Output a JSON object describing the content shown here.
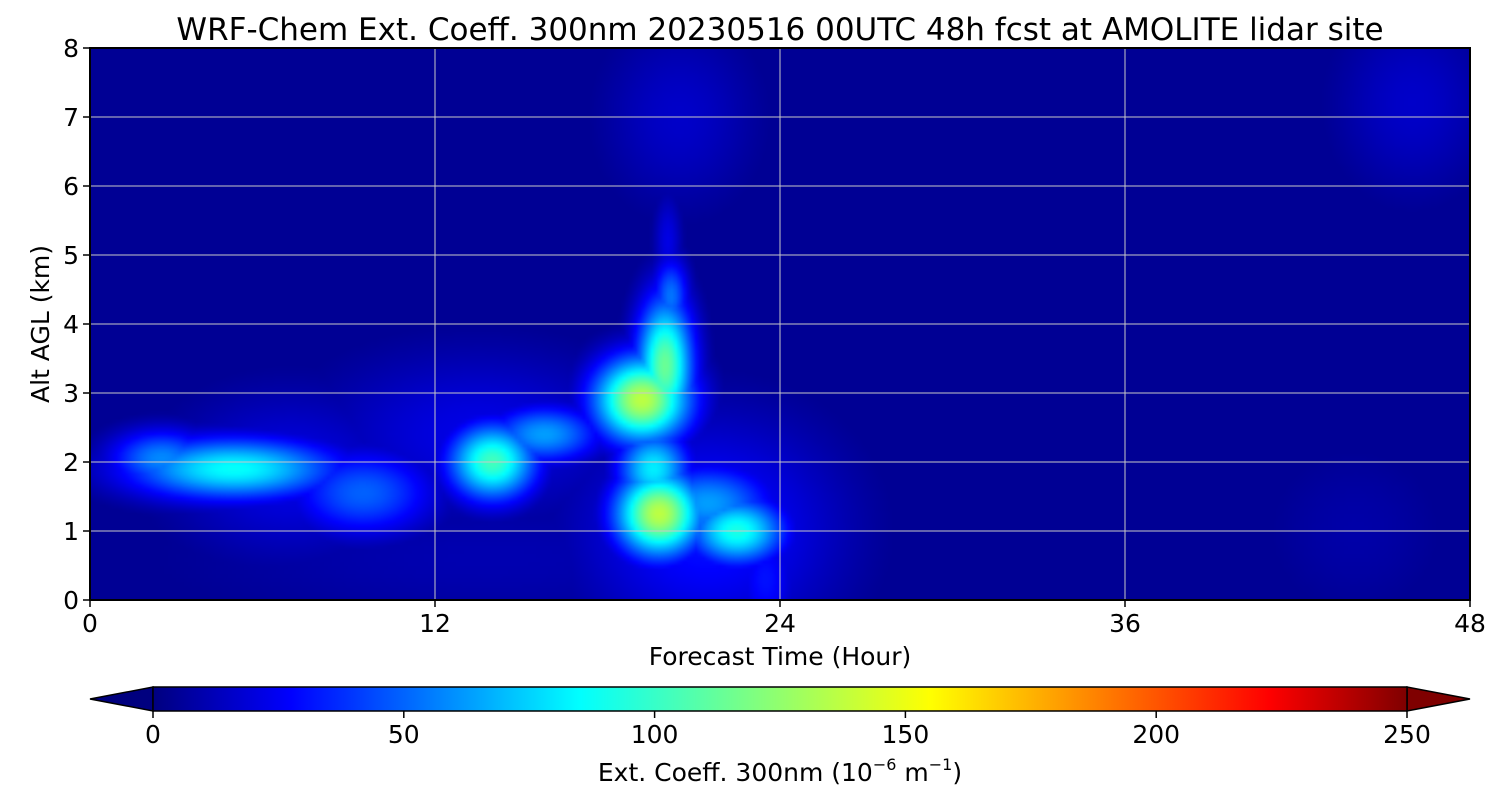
{
  "chart_data": {
    "type": "heatmap",
    "title": "WRF-Chem Ext. Coeff. 300nm  20230516 00UTC 48h fcst at AMOLITE lidar site",
    "xlabel": "Forecast Time (Hour)",
    "ylabel": "Alt AGL (km)",
    "xlim": [
      0,
      48
    ],
    "ylim": [
      0,
      8
    ],
    "xticks": [
      "0",
      "12",
      "24",
      "36",
      "48"
    ],
    "yticks": [
      "0",
      "1",
      "2",
      "3",
      "4",
      "5",
      "6",
      "7",
      "8"
    ],
    "grid": true,
    "colormap": "jet",
    "colorbar": {
      "label_main": "Ext. Coeff. 300nm  (10",
      "label_exp1": "−6",
      "label_mid": " m",
      "label_exp2": "−1",
      "label_end": ")",
      "range": [
        0,
        250
      ],
      "ticks": [
        "0",
        "50",
        "100",
        "150",
        "200",
        "250"
      ],
      "extend": "both",
      "placement": "bottom"
    },
    "background_value": 5,
    "features": [
      {
        "x": 5.0,
        "y": 1.9,
        "sx": 2.6,
        "sy": 0.32,
        "value": 95
      },
      {
        "x": 2.5,
        "y": 2.05,
        "sx": 1.3,
        "sy": 0.3,
        "value": 65
      },
      {
        "x": 9.5,
        "y": 1.55,
        "sx": 1.8,
        "sy": 0.45,
        "value": 55
      },
      {
        "x": 7.0,
        "y": 1.8,
        "sx": 3.0,
        "sy": 0.9,
        "value": 25
      },
      {
        "x": 14.0,
        "y": 2.0,
        "sx": 1.1,
        "sy": 0.4,
        "value": 110
      },
      {
        "x": 15.8,
        "y": 2.4,
        "sx": 1.4,
        "sy": 0.3,
        "value": 70
      },
      {
        "x": 13.5,
        "y": 2.4,
        "sx": 4.0,
        "sy": 0.9,
        "value": 25
      },
      {
        "x": 19.2,
        "y": 2.9,
        "sx": 1.2,
        "sy": 0.45,
        "value": 140
      },
      {
        "x": 20.0,
        "y": 3.4,
        "sx": 0.7,
        "sy": 0.7,
        "value": 120
      },
      {
        "x": 20.2,
        "y": 4.4,
        "sx": 0.45,
        "sy": 0.4,
        "value": 60
      },
      {
        "x": 20.1,
        "y": 5.2,
        "sx": 0.35,
        "sy": 0.5,
        "value": 25
      },
      {
        "x": 19.8,
        "y": 1.25,
        "sx": 1.1,
        "sy": 0.45,
        "value": 140
      },
      {
        "x": 19.6,
        "y": 1.9,
        "sx": 0.9,
        "sy": 0.4,
        "value": 90
      },
      {
        "x": 22.5,
        "y": 1.0,
        "sx": 1.2,
        "sy": 0.35,
        "value": 100
      },
      {
        "x": 21.5,
        "y": 1.4,
        "sx": 1.6,
        "sy": 0.4,
        "value": 70
      },
      {
        "x": 21.5,
        "y": 1.0,
        "sx": 3.3,
        "sy": 1.2,
        "value": 35
      },
      {
        "x": 23.5,
        "y": 0.3,
        "sx": 0.8,
        "sy": 0.6,
        "value": 35
      },
      {
        "x": 14.0,
        "y": 0.6,
        "sx": 9.0,
        "sy": 0.8,
        "value": 12
      },
      {
        "x": 20.5,
        "y": 7.0,
        "sx": 2.0,
        "sy": 1.0,
        "value": 18
      },
      {
        "x": 46.0,
        "y": 7.2,
        "sx": 2.0,
        "sy": 1.0,
        "value": 18
      },
      {
        "x": 44.0,
        "y": 1.0,
        "sx": 2.5,
        "sy": 1.0,
        "value": 10
      }
    ]
  }
}
